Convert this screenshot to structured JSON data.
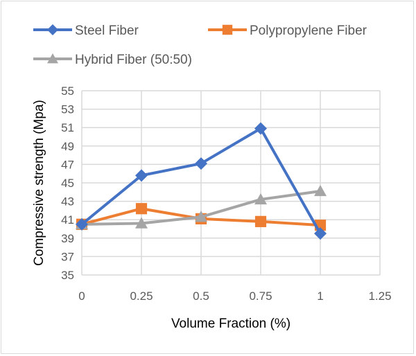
{
  "chart_data": {
    "type": "line",
    "title": "",
    "xlabel": "Volume Fraction (%)",
    "ylabel": "Compressive strength (Mpa)",
    "x": [
      0,
      0.25,
      0.5,
      0.75,
      1
    ],
    "xlim": [
      0,
      1.25
    ],
    "ylim": [
      35,
      55
    ],
    "x_ticks": [
      0,
      0.25,
      0.5,
      0.75,
      1,
      1.25
    ],
    "x_tick_labels": [
      "0",
      "0.25",
      "0.5",
      "0.75",
      "1",
      "1.25"
    ],
    "y_ticks": [
      35,
      37,
      39,
      41,
      43,
      45,
      47,
      49,
      51,
      53,
      55
    ],
    "y_tick_labels": [
      "35",
      "37",
      "39",
      "41",
      "43",
      "45",
      "47",
      "49",
      "51",
      "53",
      "55"
    ],
    "grid": true,
    "legend_position": "top",
    "series": [
      {
        "name": "Steel Fiber",
        "color": "#4472C4",
        "marker": "diamond",
        "values": [
          40.5,
          45.8,
          47.1,
          50.9,
          39.5
        ]
      },
      {
        "name": "Polypropylene Fiber",
        "color": "#ED7D31",
        "marker": "square",
        "values": [
          40.5,
          42.2,
          41.1,
          40.8,
          40.4
        ]
      },
      {
        "name": "Hybrid Fiber (50:50)",
        "color": "#A5A5A5",
        "marker": "triangle",
        "values": [
          40.5,
          40.6,
          41.3,
          43.2,
          44.1
        ]
      }
    ]
  }
}
